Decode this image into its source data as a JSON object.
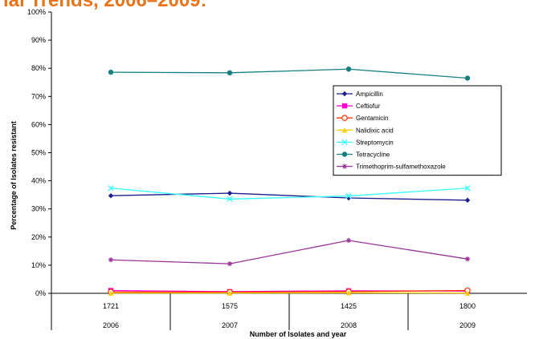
{
  "page_title": "ial Trends, 2006–2009:",
  "chart_data": {
    "type": "line",
    "categories": [
      "2006",
      "2007",
      "2008",
      "2009"
    ],
    "isolate_counts": [
      "1721",
      "1575",
      "1425",
      "1800"
    ],
    "xlabel": "Number of Isolates and year",
    "ylabel": "Percentage of Isolates resistant",
    "ylim": [
      0,
      100
    ],
    "y_ticks": [
      "0%",
      "10%",
      "20%",
      "30%",
      "40%",
      "50%",
      "60%",
      "70%",
      "80%",
      "90%",
      "100%"
    ],
    "grid": false,
    "legend_position": "right",
    "series": [
      {
        "name": "Ampicillin",
        "color": "#1c1c8c",
        "marker": "diamond",
        "values": [
          34.7,
          35.6,
          33.9,
          33.1
        ]
      },
      {
        "name": "Ceftiofur",
        "color": "#ff00cc",
        "marker": "square",
        "values": [
          1.0,
          0.6,
          0.9,
          0.8
        ]
      },
      {
        "name": "Gentamicin",
        "color": "#ff3300",
        "marker": "circle-open",
        "values": [
          0.5,
          0.4,
          0.6,
          1.0
        ]
      },
      {
        "name": "Nalidixic acid",
        "color": "#ffcc00",
        "marker": "triangle",
        "values": [
          0.1,
          0.1,
          0.2,
          0.1
        ]
      },
      {
        "name": "Streptomycin",
        "color": "#33ffff",
        "marker": "x",
        "values": [
          37.4,
          33.5,
          34.6,
          37.4
        ]
      },
      {
        "name": "Tetracycline",
        "color": "#168080",
        "marker": "circle",
        "values": [
          78.6,
          78.4,
          79.7,
          76.5
        ]
      },
      {
        "name": "Trimethoprim-sulfamethoxazole",
        "color": "#993399",
        "marker": "star",
        "values": [
          11.9,
          10.5,
          18.8,
          12.2
        ]
      }
    ]
  }
}
